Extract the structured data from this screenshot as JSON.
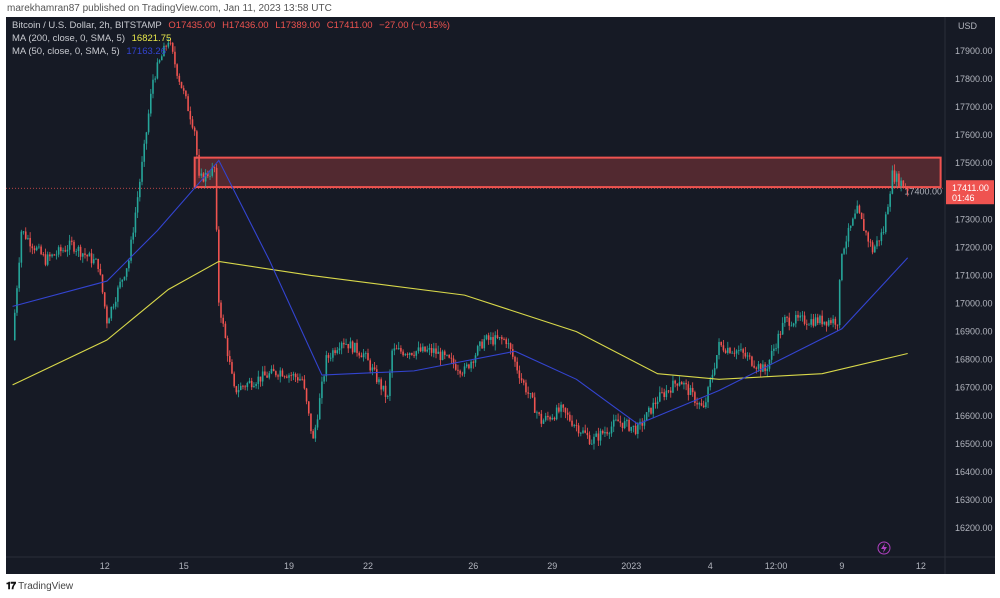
{
  "publisher_line": "marekhamran87 published on TradingView.com, Jan 11, 2023 13:58 UTC",
  "legend": {
    "symbol": "Bitcoin / U.S. Dollar, 2h, BITSTAMP",
    "open": "O17435.00",
    "high": "H17436.00",
    "low": "L17389.00",
    "close": "C17411.00",
    "change": "−27.00 (−0.15%)",
    "ma200_label": "MA (200, close, 0, SMA, 5)",
    "ma200_value": "16821.75",
    "ma50_label": "MA (50, close, 0, SMA, 5)",
    "ma50_value": "17163.26"
  },
  "price_axis": {
    "currency": "USD",
    "last_price": "17411.00",
    "countdown": "01:46"
  },
  "footer_logo": "TradingView",
  "colors": {
    "background": "#161a25",
    "up": "#26a69a",
    "down": "#ef5350",
    "ma200": "#d8d84a",
    "ma50": "#3344d0",
    "zone": "#ef5350"
  },
  "chart_data": {
    "type": "candlestick",
    "ylim": [
      16130,
      17990
    ],
    "yticks": [
      16200,
      16300,
      16400,
      16500,
      16600,
      16700,
      16800,
      16900,
      17000,
      17100,
      17200,
      17300,
      17400,
      17500,
      17600,
      17700,
      17800,
      17900
    ],
    "xlim": [
      "2022-12-08 06:00",
      "2023-01-12 22:00"
    ],
    "xticks": [
      {
        "label": "12",
        "t": "2022-12-12 00:00"
      },
      {
        "label": "15",
        "t": "2022-12-15 00:00"
      },
      {
        "label": "19",
        "t": "2022-12-19 00:00"
      },
      {
        "label": "22",
        "t": "2022-12-22 00:00"
      },
      {
        "label": "26",
        "t": "2022-12-26 00:00"
      },
      {
        "label": "29",
        "t": "2022-12-29 00:00"
      },
      {
        "label": "2023",
        "t": "2023-01-01 00:00"
      },
      {
        "label": "4",
        "t": "2023-01-04 00:00"
      },
      {
        "label": "12:00",
        "t": "2023-01-06 12:00"
      },
      {
        "label": "9",
        "t": "2023-01-09 00:00"
      },
      {
        "label": "12",
        "t": "2023-01-12 00:00"
      }
    ],
    "price_path": [
      [
        "2022-12-08 12:00",
        16870
      ],
      [
        "2022-12-08 20:00",
        17260
      ],
      [
        "2022-12-09 18:00",
        17155
      ],
      [
        "2022-12-10 18:00",
        17210
      ],
      [
        "2022-12-11 18:00",
        17140
      ],
      [
        "2022-12-12 02:00",
        16940
      ],
      [
        "2022-12-12 22:00",
        17155
      ],
      [
        "2022-12-13 12:00",
        17550
      ],
      [
        "2022-12-13 20:00",
        17800
      ],
      [
        "2022-12-14 10:00",
        17940
      ],
      [
        "2022-12-14 20:00",
        17800
      ],
      [
        "2022-12-15 10:00",
        17620
      ],
      [
        "2022-12-15 14:00",
        17440
      ],
      [
        "2022-12-16 04:00",
        17480
      ],
      [
        "2022-12-16 08:00",
        17010
      ],
      [
        "2022-12-16 22:00",
        16690
      ],
      [
        "2022-12-17 18:00",
        16730
      ],
      [
        "2022-12-18 16:00",
        16760
      ],
      [
        "2022-12-19 12:00",
        16730
      ],
      [
        "2022-12-19 22:00",
        16510
      ],
      [
        "2022-12-20 10:00",
        16800
      ],
      [
        "2022-12-21 00:00",
        16870
      ],
      [
        "2022-12-21 20:00",
        16820
      ],
      [
        "2022-12-22 18:00",
        16660
      ],
      [
        "2022-12-22 22:00",
        16830
      ],
      [
        "2022-12-24 12:00",
        16830
      ],
      [
        "2022-12-25 16:00",
        16760
      ],
      [
        "2022-12-26 10:00",
        16870
      ],
      [
        "2022-12-27 06:00",
        16870
      ],
      [
        "2022-12-27 20:00",
        16730
      ],
      [
        "2022-12-28 14:00",
        16580
      ],
      [
        "2022-12-29 08:00",
        16620
      ],
      [
        "2022-12-30 12:00",
        16510
      ],
      [
        "2022-12-31 12:00",
        16580
      ],
      [
        "2023-01-01 06:00",
        16550
      ],
      [
        "2023-01-02 00:00",
        16660
      ],
      [
        "2023-01-02 20:00",
        16730
      ],
      [
        "2023-01-03 18:00",
        16620
      ],
      [
        "2023-01-04 08:00",
        16850
      ],
      [
        "2023-01-05 02:00",
        16830
      ],
      [
        "2023-01-06 02:00",
        16760
      ],
      [
        "2023-01-06 20:00",
        16940
      ],
      [
        "2023-01-08 06:00",
        16940
      ],
      [
        "2023-01-08 20:00",
        16940
      ],
      [
        "2023-01-09 00:00",
        17190
      ],
      [
        "2023-01-09 14:00",
        17330
      ],
      [
        "2023-01-10 04:00",
        17190
      ],
      [
        "2023-01-10 14:00",
        17260
      ],
      [
        "2023-01-10 22:00",
        17460
      ],
      [
        "2023-01-11 12:00",
        17411
      ]
    ],
    "ma200": [
      [
        "2022-12-08 12:00",
        16710
      ],
      [
        "2022-12-12 02:00",
        16870
      ],
      [
        "2022-12-14 10:00",
        17050
      ],
      [
        "2022-12-16 08:00",
        17150
      ],
      [
        "2022-12-19 20:00",
        17100
      ],
      [
        "2022-12-25 16:00",
        17030
      ],
      [
        "2022-12-29 22:00",
        16900
      ],
      [
        "2023-01-02 00:00",
        16750
      ],
      [
        "2023-01-04 08:00",
        16730
      ],
      [
        "2023-01-08 06:00",
        16750
      ],
      [
        "2023-01-11 12:00",
        16822
      ]
    ],
    "ma50": [
      [
        "2022-12-08 12:00",
        16990
      ],
      [
        "2022-12-12 02:00",
        17080
      ],
      [
        "2022-12-14 00:00",
        17260
      ],
      [
        "2022-12-16 08:00",
        17510
      ],
      [
        "2022-12-18 06:00",
        17155
      ],
      [
        "2022-12-20 06:00",
        16745
      ],
      [
        "2022-12-23 18:00",
        16760
      ],
      [
        "2022-12-27 14:00",
        16830
      ],
      [
        "2022-12-29 22:00",
        16730
      ],
      [
        "2023-01-01 06:00",
        16570
      ],
      [
        "2023-01-04 08:00",
        16690
      ],
      [
        "2023-01-06 16:00",
        16800
      ],
      [
        "2023-01-09 00:00",
        16910
      ],
      [
        "2023-01-11 12:00",
        17163
      ]
    ],
    "resistance_zone": {
      "from": "2022-12-15 10:00",
      "to": "2023-01-12 18:00",
      "low": 17415,
      "high": 17520
    },
    "last_price": 17411
  }
}
